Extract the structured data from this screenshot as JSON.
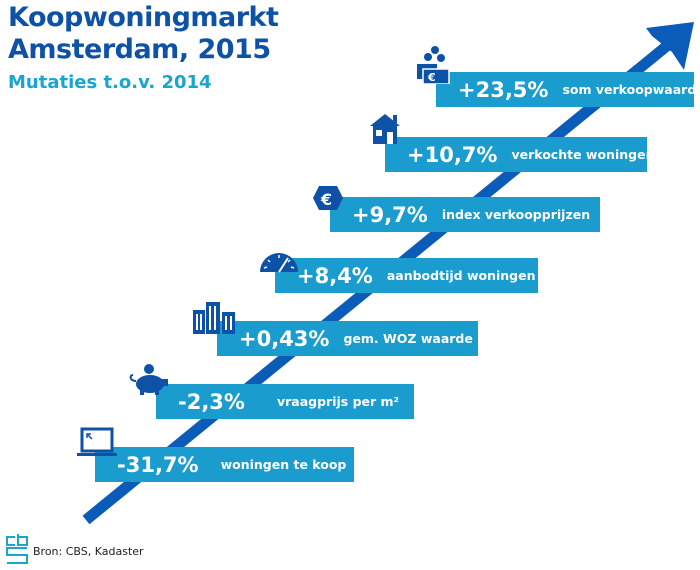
{
  "title_line1": "Koopwoningmarkt",
  "title_line2": "Amsterdam, 2015",
  "subtitle": "Mutaties t.o.v. 2014",
  "items": [
    {
      "value": "+23,5%",
      "label": "som verkoopwaarde",
      "icon": "money-icon"
    },
    {
      "value": "+10,7%",
      "label": "verkochte woningen",
      "icon": "house-icon"
    },
    {
      "value": "+9,7%",
      "label": "index verkoopprijzen",
      "icon": "euro-icon"
    },
    {
      "value": "+8,4%",
      "label": "aanbodtijd woningen",
      "icon": "gauge-icon"
    },
    {
      "value": "+0,43%",
      "label": "gem. WOZ waarde",
      "icon": "buildings-icon"
    },
    {
      "value": "-2,3%",
      "label": "vraagprijs per m²",
      "icon": "piggy-bank-icon"
    },
    {
      "value": "-31,7%",
      "label": "woningen te koop",
      "icon": "laptop-icon"
    }
  ],
  "source": "Bron: CBS, Kadaster",
  "logo_text": "cbs",
  "colors": {
    "title": "#0e52a8",
    "subtitle": "#19a4d2",
    "box": "#1a9cce",
    "arrow": "#0b5cb8"
  }
}
